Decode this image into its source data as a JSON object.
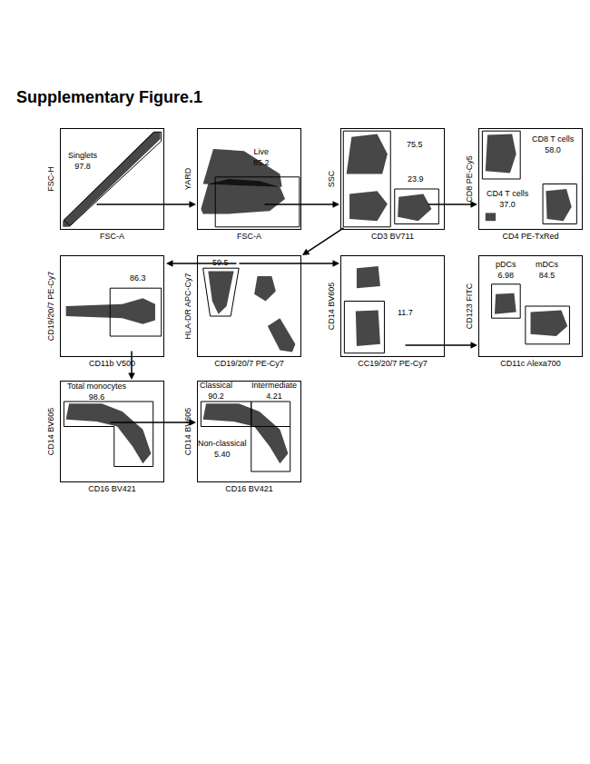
{
  "title": "Supplementary Figure.1",
  "chart_data": [
    {
      "type": "scatter",
      "x_label": "FSC-A",
      "y_label": "FSC-H",
      "xlim": [
        0,
        100
      ],
      "ylim": [
        0,
        100
      ],
      "tick_labels": false,
      "color": "#000000",
      "populations": [
        {
          "points": [
            [
              2,
              2
            ],
            [
              8,
              2
            ],
            [
              97,
              90
            ],
            [
              97,
              97
            ],
            [
              90,
              97
            ],
            [
              2,
              8
            ]
          ]
        }
      ],
      "gates": [
        {
          "label": "Singlets",
          "value": 97.8,
          "points": [
            [
              3,
              9
            ],
            [
              9,
              3
            ],
            [
              98,
              88
            ],
            [
              98,
              97
            ],
            [
              91,
              97
            ]
          ]
        }
      ]
    },
    {
      "type": "scatter",
      "x_label": "FSC-A",
      "y_label": "YARD",
      "xlim": [
        0,
        100
      ],
      "ylim": [
        0,
        100
      ],
      "tick_labels": false,
      "color": "#000000",
      "populations": [
        {
          "points": [
            [
              3,
              20
            ],
            [
              10,
              45
            ],
            [
              30,
              50
            ],
            [
              60,
              48
            ],
            [
              80,
              42
            ],
            [
              85,
              30
            ],
            [
              70,
              18
            ],
            [
              30,
              15
            ],
            [
              5,
              15
            ]
          ]
        },
        {
          "points": [
            [
              5,
              45
            ],
            [
              15,
              80
            ],
            [
              45,
              78
            ],
            [
              80,
              55
            ],
            [
              82,
              42
            ]
          ]
        }
      ],
      "gates": [
        {
          "label": "Live",
          "value": 85.2,
          "points": [
            [
              17,
              2
            ],
            [
              99,
              2
            ],
            [
              99,
              52
            ],
            [
              17,
              52
            ]
          ]
        }
      ]
    },
    {
      "type": "scatter",
      "x_label": "CD3 BV711",
      "y_label": "SSC",
      "xlim": [
        0,
        100
      ],
      "ylim": [
        0,
        100
      ],
      "tick_labels": false,
      "color": "#000000",
      "populations": [
        {
          "points": [
            [
              5,
              55
            ],
            [
              10,
              92
            ],
            [
              35,
              95
            ],
            [
              45,
              75
            ],
            [
              40,
              55
            ]
          ]
        },
        {
          "points": [
            [
              8,
              10
            ],
            [
              8,
              35
            ],
            [
              35,
              38
            ],
            [
              45,
              25
            ],
            [
              35,
              8
            ]
          ]
        },
        {
          "points": [
            [
              55,
              12
            ],
            [
              56,
              32
            ],
            [
              80,
              35
            ],
            [
              88,
              20
            ],
            [
              75,
              8
            ]
          ]
        }
      ],
      "gates": [
        {
          "value": 75.5,
          "points": [
            [
              2,
              2
            ],
            [
              48,
              2
            ],
            [
              48,
              98
            ],
            [
              2,
              98
            ]
          ]
        },
        {
          "value": 23.9,
          "points": [
            [
              52,
              5
            ],
            [
              95,
              5
            ],
            [
              95,
              40
            ],
            [
              52,
              40
            ]
          ]
        }
      ]
    },
    {
      "type": "scatter",
      "x_label": "CD4 PE-TxRed",
      "y_label": "CD8 PE-Cy5",
      "xlim": [
        0,
        100
      ],
      "ylim": [
        0,
        100
      ],
      "tick_labels": false,
      "color": "#000000",
      "populations": [
        {
          "points": [
            [
              6,
              58
            ],
            [
              8,
              94
            ],
            [
              32,
              95
            ],
            [
              36,
              75
            ],
            [
              30,
              56
            ]
          ]
        },
        {
          "points": [
            [
              66,
              10
            ],
            [
              65,
              38
            ],
            [
              85,
              40
            ],
            [
              90,
              22
            ],
            [
              82,
              8
            ]
          ]
        },
        {
          "points": [
            [
              6,
              8
            ],
            [
              6,
              16
            ],
            [
              16,
              16
            ],
            [
              16,
              8
            ]
          ]
        }
      ],
      "gates": [
        {
          "label": "CD8 T cells",
          "value": 58.0,
          "value_label": "58.0",
          "points": [
            [
              3,
              50
            ],
            [
              40,
              50
            ],
            [
              40,
              98
            ],
            [
              3,
              98
            ]
          ]
        },
        {
          "label": "CD4 T cells",
          "value": 37.0,
          "value_label": "37.0",
          "points": [
            [
              62,
              5
            ],
            [
              95,
              5
            ],
            [
              95,
              45
            ],
            [
              62,
              45
            ]
          ]
        }
      ]
    },
    {
      "type": "scatter",
      "x_label": "CD19/20/7 PE-Cy7",
      "y_label": "HLA-DR APC-Cy7",
      "xlim": [
        0,
        100
      ],
      "ylim": [
        0,
        100
      ],
      "tick_labels": false,
      "color": "#000000",
      "populations": [
        {
          "points": [
            [
              10,
              85
            ],
            [
              35,
              85
            ],
            [
              28,
              50
            ],
            [
              20,
              42
            ],
            [
              14,
              55
            ]
          ]
        },
        {
          "points": [
            [
              55,
              62
            ],
            [
              58,
              80
            ],
            [
              72,
              80
            ],
            [
              76,
              65
            ],
            [
              66,
              55
            ]
          ]
        },
        {
          "points": [
            [
              68,
              30
            ],
            [
              80,
              38
            ],
            [
              95,
              12
            ],
            [
              92,
              4
            ],
            [
              80,
              6
            ]
          ]
        }
      ],
      "gates": [
        {
          "value": 59.5,
          "points": [
            [
              5,
              88
            ],
            [
              40,
              88
            ],
            [
              32,
              40
            ],
            [
              12,
              40
            ]
          ]
        }
      ]
    },
    {
      "type": "scatter",
      "x_label": "CD11b V500",
      "y_label": "CD19/20/7 PE-Cy7",
      "xlim": [
        0,
        100
      ],
      "ylim": [
        0,
        100
      ],
      "tick_labels": false,
      "color": "#000000",
      "populations": [
        {
          "points": [
            [
              5,
              40
            ],
            [
              5,
              50
            ],
            [
              60,
              52
            ],
            [
              80,
              58
            ],
            [
              92,
              52
            ],
            [
              92,
              36
            ],
            [
              80,
              32
            ],
            [
              60,
              38
            ]
          ]
        }
      ],
      "gates": [
        {
          "value": 86.3,
          "points": [
            [
              48,
              20
            ],
            [
              98,
              20
            ],
            [
              98,
              68
            ],
            [
              48,
              68
            ]
          ]
        }
      ]
    },
    {
      "type": "scatter",
      "x_label": "CC19/20/7 PE-Cy7",
      "y_label": "CD14 BV605",
      "xlim": [
        0,
        100
      ],
      "ylim": [
        0,
        100
      ],
      "tick_labels": false,
      "color": "#000000",
      "populations": [
        {
          "points": [
            [
              15,
              68
            ],
            [
              15,
              88
            ],
            [
              36,
              90
            ],
            [
              38,
              70
            ]
          ]
        },
        {
          "points": [
            [
              15,
              10
            ],
            [
              14,
              45
            ],
            [
              36,
              46
            ],
            [
              38,
              12
            ]
          ]
        }
      ],
      "gates": [
        {
          "value": 11.7,
          "points": [
            [
              3,
              3
            ],
            [
              42,
              3
            ],
            [
              42,
              55
            ],
            [
              3,
              55
            ]
          ]
        }
      ]
    },
    {
      "type": "scatter",
      "x_label": "CD11c Alexa700",
      "y_label": "CD123 FITC",
      "xlim": [
        0,
        100
      ],
      "ylim": [
        0,
        100
      ],
      "tick_labels": false,
      "color": "#000000",
      "populations": [
        {
          "points": [
            [
              15,
              42
            ],
            [
              16,
              62
            ],
            [
              34,
              63
            ],
            [
              36,
              44
            ]
          ]
        },
        {
          "points": [
            [
              50,
              22
            ],
            [
              50,
              44
            ],
            [
              80,
              46
            ],
            [
              86,
              30
            ],
            [
              75,
              20
            ]
          ]
        }
      ],
      "gates": [
        {
          "label": "pDCs",
          "value": 6.98,
          "points": [
            [
              12,
              38
            ],
            [
              40,
              38
            ],
            [
              40,
              72
            ],
            [
              12,
              72
            ]
          ]
        },
        {
          "label": "mDCs",
          "value": 84.5,
          "points": [
            [
              45,
              12
            ],
            [
              88,
              12
            ],
            [
              88,
              50
            ],
            [
              45,
              50
            ]
          ]
        }
      ]
    },
    {
      "type": "scatter",
      "x_label": "CD16 BV421",
      "y_label": "CD14 BV605",
      "xlim": [
        0,
        100
      ],
      "ylim": [
        0,
        100
      ],
      "tick_labels": false,
      "color": "#000000",
      "populations": [
        {
          "points": [
            [
              5,
              62
            ],
            [
              8,
              78
            ],
            [
              40,
              78
            ],
            [
              60,
              70
            ],
            [
              80,
              52
            ],
            [
              88,
              28
            ],
            [
              80,
              18
            ],
            [
              70,
              35
            ],
            [
              55,
              55
            ],
            [
              35,
              60
            ]
          ]
        }
      ],
      "gates": [
        {
          "label": "Total monocytes",
          "value": 98.6,
          "points": [
            [
              3,
              80
            ],
            [
              90,
              80
            ],
            [
              90,
              15
            ],
            [
              52,
              15
            ],
            [
              52,
              55
            ],
            [
              3,
              55
            ]
          ]
        }
      ]
    },
    {
      "type": "scatter",
      "x_label": "CD16 BV421",
      "y_label": "CD14 BV605",
      "xlim": [
        0,
        100
      ],
      "ylim": [
        0,
        100
      ],
      "tick_labels": false,
      "color": "#000000",
      "populations": [
        {
          "points": [
            [
              5,
              62
            ],
            [
              8,
              78
            ],
            [
              40,
              78
            ],
            [
              60,
              70
            ],
            [
              80,
              52
            ],
            [
              88,
              28
            ],
            [
              80,
              18
            ],
            [
              70,
              35
            ],
            [
              55,
              55
            ],
            [
              35,
              60
            ]
          ]
        }
      ],
      "gates": [
        {
          "label": "Classical",
          "value": 90.2,
          "points": [
            [
              3,
              55
            ],
            [
              52,
              55
            ],
            [
              52,
              80
            ],
            [
              3,
              80
            ]
          ]
        },
        {
          "label": "Intermediate",
          "value": 4.21,
          "points": [
            [
              52,
              55
            ],
            [
              90,
              55
            ],
            [
              90,
              80
            ],
            [
              52,
              80
            ]
          ]
        },
        {
          "label": "Non-classical",
          "value": 5.4,
          "value_label": "5.40",
          "points": [
            [
              52,
              10
            ],
            [
              90,
              10
            ],
            [
              90,
              55
            ],
            [
              52,
              55
            ]
          ]
        }
      ]
    }
  ]
}
